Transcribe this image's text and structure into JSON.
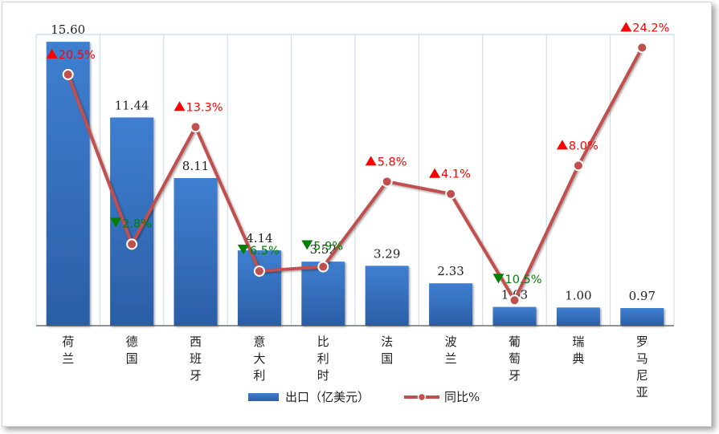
{
  "chart_data": {
    "type": "bar",
    "categories": [
      "荷兰",
      "德国",
      "西班牙",
      "意大利",
      "比利时",
      "法国",
      "波兰",
      "葡萄牙",
      "瑞典",
      "罗马尼亚"
    ],
    "series": [
      {
        "name": "出口（亿美元）",
        "type": "bar",
        "values": [
          15.6,
          11.44,
          8.11,
          4.14,
          3.52,
          3.29,
          2.33,
          1.03,
          1.0,
          0.97
        ],
        "labels": [
          "15.60",
          "11.44",
          "8.11",
          "4.14",
          "3.52",
          "3.29",
          "2.33",
          "1.03",
          "1.00",
          "0.97"
        ],
        "color": "#3c78c8"
      },
      {
        "name": "同比%",
        "type": "line",
        "values": [
          20.5,
          -2.8,
          13.3,
          -6.5,
          -5.9,
          5.8,
          4.1,
          -10.5,
          8.0,
          24.2
        ],
        "labels": [
          "20.5%",
          "2.8%",
          "13.3%",
          "6.5%",
          "5.9%",
          "5.8%",
          "4.1%",
          "10.5%",
          "8.0%",
          "24.2%"
        ],
        "direction": [
          "up",
          "down",
          "up",
          "down",
          "down",
          "up",
          "up",
          "down",
          "up",
          "up"
        ],
        "color": "#c0504d"
      }
    ],
    "y_primary_range": [
      0,
      16
    ],
    "y_secondary_range": [
      -14,
      26
    ],
    "grid": "vertical",
    "legend_position": "bottom",
    "colors": {
      "up": "#ff0000",
      "down": "#008000",
      "bar": "#3c78c8",
      "line": "#c0504d"
    }
  }
}
